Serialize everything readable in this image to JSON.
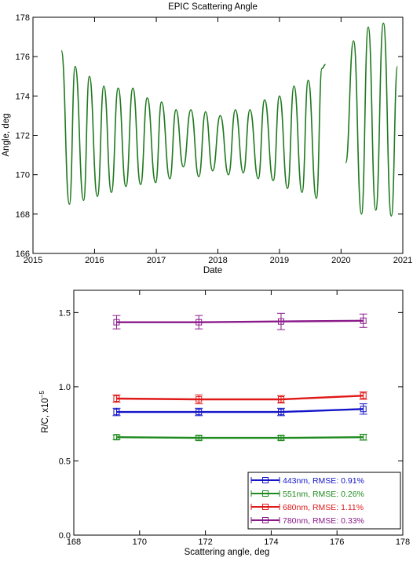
{
  "chart_data": [
    {
      "type": "line",
      "title": "EPIC Scattering Angle",
      "xlabel": "Date",
      "ylabel": "Angle, deg",
      "xlim": [
        "2015-01-01",
        "2021-01-01"
      ],
      "ylim": [
        166,
        178
      ],
      "x_ticks": [
        "2015",
        "2016",
        "2017",
        "2018",
        "2019",
        "2020",
        "2021"
      ],
      "y_ticks": [
        "166",
        "168",
        "170",
        "172",
        "174",
        "176",
        "178"
      ],
      "grid": false,
      "color": "#1f7a1f",
      "series": [
        {
          "segment": 1,
          "points": [
            [
              "2015-06-18",
              176.3
            ],
            [
              "2015-08-05",
              168.5
            ],
            [
              "2015-09-08",
              175.5
            ],
            [
              "2015-10-28",
              168.7
            ],
            [
              "2015-12-01",
              175.0
            ],
            [
              "2016-01-18",
              168.9
            ],
            [
              "2016-02-25",
              174.5
            ],
            [
              "2016-04-10",
              169.1
            ],
            [
              "2016-05-20",
              174.4
            ],
            [
              "2016-07-05",
              169.4
            ],
            [
              "2016-08-15",
              174.4
            ],
            [
              "2016-09-30",
              169.5
            ],
            [
              "2016-11-08",
              173.9
            ],
            [
              "2016-12-28",
              169.6
            ],
            [
              "2017-02-01",
              173.7
            ],
            [
              "2017-03-22",
              169.8
            ],
            [
              "2017-04-28",
              173.3
            ],
            [
              "2017-06-10",
              170.4
            ],
            [
              "2017-07-25",
              173.3
            ],
            [
              "2017-09-10",
              169.9
            ],
            [
              "2017-10-20",
              173.2
            ],
            [
              "2017-12-01",
              170.2
            ],
            [
              "2018-01-15",
              173.0
            ],
            [
              "2018-03-05",
              170.0
            ],
            [
              "2018-04-15",
              173.3
            ],
            [
              "2018-06-01",
              170.1
            ],
            [
              "2018-07-10",
              173.3
            ],
            [
              "2018-08-28",
              169.8
            ],
            [
              "2018-10-05",
              173.8
            ],
            [
              "2018-11-25",
              169.7
            ],
            [
              "2019-01-01",
              174.0
            ],
            [
              "2019-02-18",
              169.3
            ],
            [
              "2019-03-28",
              174.5
            ],
            [
              "2019-05-15",
              169.1
            ],
            [
              "2019-06-20",
              174.8
            ],
            [
              "2019-08-08",
              168.8
            ],
            [
              "2019-09-10",
              175.4
            ],
            [
              "2019-10-01",
              175.6
            ]
          ]
        },
        {
          "segment": 2,
          "points": [
            [
              "2020-01-28",
              170.6
            ],
            [
              "2020-03-15",
              176.8
            ],
            [
              "2020-05-01",
              168.0
            ],
            [
              "2020-06-10",
              177.5
            ],
            [
              "2020-07-25",
              168.2
            ],
            [
              "2020-09-08",
              177.7
            ],
            [
              "2020-10-25",
              167.9
            ],
            [
              "2020-12-01",
              175.5
            ]
          ]
        }
      ]
    },
    {
      "type": "line",
      "xlabel": "Scattering angle, deg",
      "ylabel": "R/C, x10",
      "ylabel_exponent": "−5",
      "xlim": [
        168,
        178
      ],
      "ylim": [
        0.0,
        1.65
      ],
      "x_ticks": [
        "168",
        "170",
        "172",
        "174",
        "176",
        "178"
      ],
      "y_ticks": [
        "0.0",
        "0.5",
        "1.0",
        "1.5"
      ],
      "grid": false,
      "legend_position": "bottom-right",
      "x": [
        169.3,
        171.8,
        174.3,
        176.8
      ],
      "series": [
        {
          "name": "443nm, RMSE: 0.91%",
          "color": "#1414c8",
          "values": [
            0.83,
            0.83,
            0.83,
            0.85
          ],
          "errors": [
            0.025,
            0.025,
            0.025,
            0.035
          ]
        },
        {
          "name": "551nm, RMSE: 0.26%",
          "color": "#1f8a1f",
          "values": [
            0.66,
            0.655,
            0.655,
            0.66
          ],
          "errors": [
            0.015,
            0.015,
            0.015,
            0.02
          ]
        },
        {
          "name": "680nm, RMSE: 1.11%",
          "color": "#e01818",
          "values": [
            0.92,
            0.915,
            0.915,
            0.94
          ],
          "errors": [
            0.025,
            0.03,
            0.025,
            0.025
          ]
        },
        {
          "name": "780nm, RMSE: 0.33%",
          "color": "#8a1a8a",
          "values": [
            1.435,
            1.435,
            1.44,
            1.445
          ],
          "errors": [
            0.045,
            0.045,
            0.055,
            0.045
          ]
        }
      ]
    }
  ]
}
